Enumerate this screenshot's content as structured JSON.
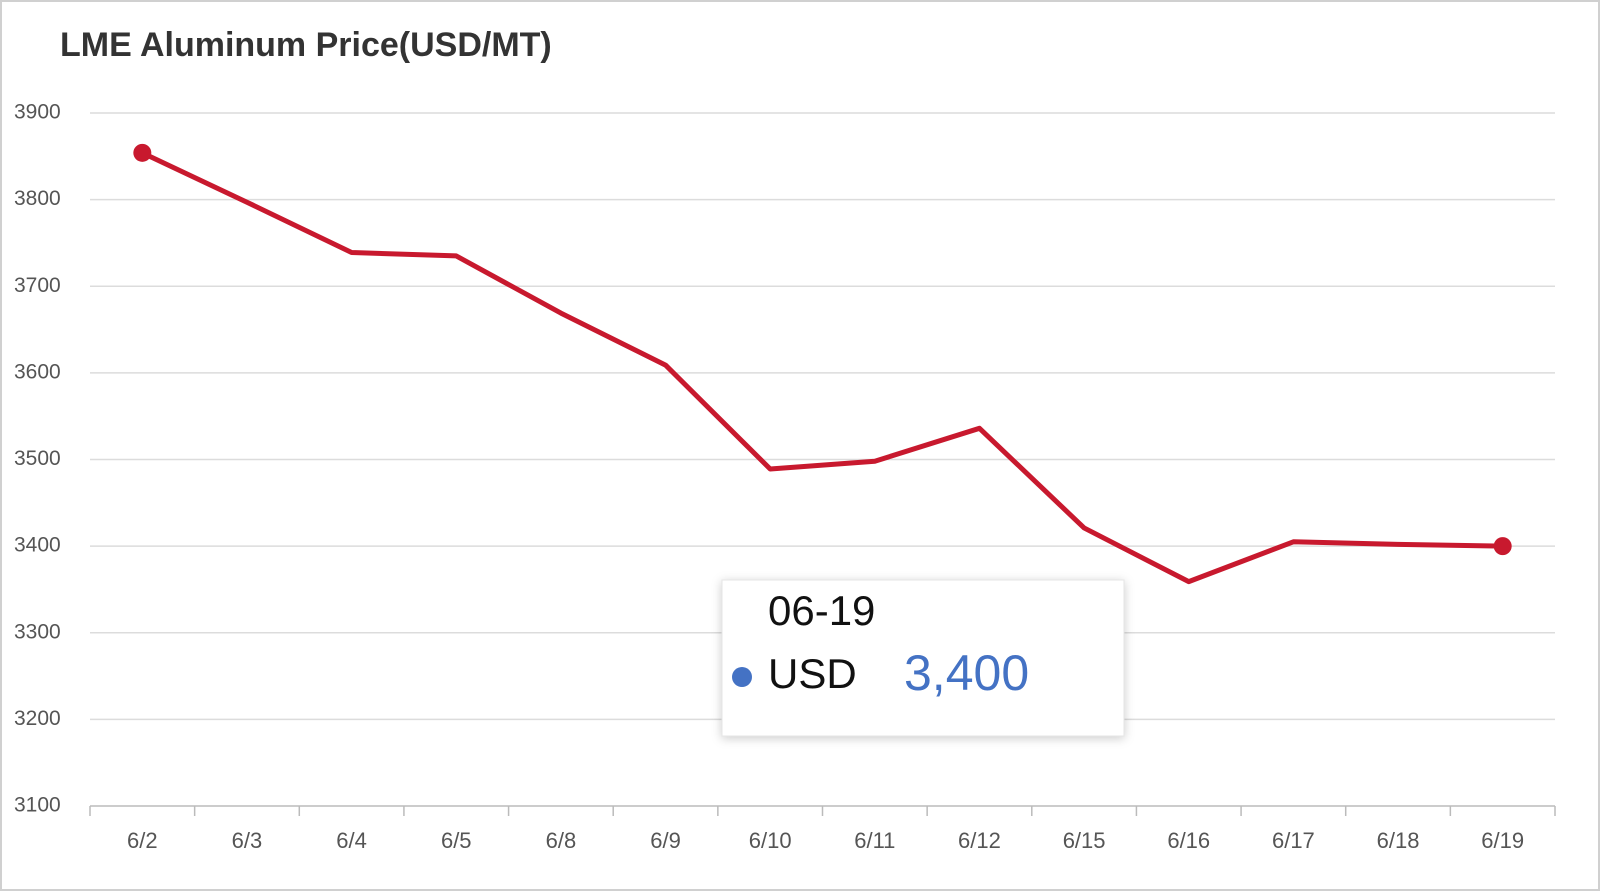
{
  "chart_data": {
    "type": "line",
    "title": "LME Aluminum Price(USD/MT)",
    "categories": [
      "6/2",
      "6/3",
      "6/4",
      "6/5",
      "6/8",
      "6/9",
      "6/10",
      "6/11",
      "6/12",
      "6/15",
      "6/16",
      "6/17",
      "6/18",
      "6/19"
    ],
    "series": [
      {
        "name": "USD",
        "color": "#c8192e",
        "values": [
          3854,
          3797,
          3739,
          3735,
          3669,
          3609,
          3489,
          3498,
          3536,
          3421,
          3359,
          3405,
          3402,
          3400
        ]
      }
    ],
    "ylim": [
      3100,
      3900
    ],
    "yticks": [
      3100,
      3200,
      3300,
      3400,
      3500,
      3600,
      3700,
      3800,
      3900
    ],
    "grid": true,
    "tooltip": {
      "title": "06-19",
      "name": "USD",
      "label": "3,400",
      "color": "#4472c4"
    }
  }
}
